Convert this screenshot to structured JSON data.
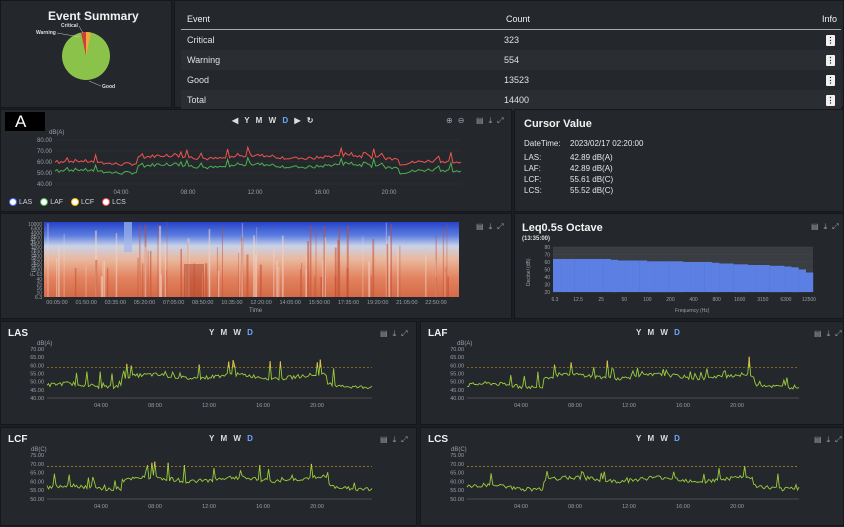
{
  "event_summary": {
    "title": "Event Summary",
    "pie_labels": {
      "critical": "Critical",
      "warning": "Warning",
      "good": "Good"
    },
    "table": {
      "headers": [
        "Event",
        "Count",
        "Info"
      ],
      "rows": [
        {
          "event": "Critical",
          "count": "323"
        },
        {
          "event": "Warning",
          "count": "554"
        },
        {
          "event": "Good",
          "count": "13523"
        },
        {
          "event": "Total",
          "count": "14400"
        }
      ],
      "info_glyph": "⋮"
    },
    "colors": {
      "critical": "#c0392b",
      "warning": "#e8a33a",
      "good": "#8bc34a"
    }
  },
  "top_chart": {
    "badge": "A",
    "range_buttons": [
      "Y",
      "M",
      "W",
      "D"
    ],
    "selected_range": "D",
    "yunit": "dB(A)",
    "yticks": [
      "80.00",
      "70.00",
      "60.00",
      "50.00",
      "40.00"
    ],
    "xticks": [
      "04:00",
      "08:00",
      "12:00",
      "16:00",
      "20:00"
    ],
    "legend": [
      "LAS",
      "LAF",
      "LCF",
      "LCS"
    ],
    "colors": {
      "LAS": "#4a6cf7",
      "LAF": "#4caf50",
      "LCF": "#ffb300",
      "LCS": "#ef5350"
    }
  },
  "cursor": {
    "title": "Cursor Value",
    "datetime_label": "DateTime:",
    "datetime": "2023/02/17 02:20:00",
    "rows": [
      {
        "label": "LAS:",
        "value": "42.89 dB(A)"
      },
      {
        "label": "LAF:",
        "value": "42.89 dB(A)"
      },
      {
        "label": "LCF:",
        "value": "55.61 dB(C)"
      },
      {
        "label": "LCS:",
        "value": "55.52 dB(C)"
      }
    ]
  },
  "spectrogram": {
    "ylabel": "Frequency (Hz)",
    "xlabel": "Time",
    "yticks": [
      "10000",
      "6300",
      "4000",
      "2500",
      "1600",
      "1000",
      "630",
      "400",
      "250",
      "160",
      "100",
      "63",
      "40",
      "25",
      "16",
      "10",
      "6.3"
    ],
    "xticks": [
      "00:05:00",
      "01:50:00",
      "03:35:00",
      "05:20:00",
      "07:05:00",
      "08:50:00",
      "10:35:00",
      "12:20:00",
      "14:05:00",
      "15:50:00",
      "17:35:00",
      "19:20:00",
      "21:05:00",
      "22:50:00"
    ]
  },
  "octave": {
    "title": "Leq0.5s Octave",
    "time": "(13:35:00)",
    "ylabel": "Decibel (dB)",
    "xlabel": "Frequency (Hz)",
    "yticks": [
      "80",
      "70",
      "60",
      "50",
      "40",
      "30",
      "20"
    ],
    "xticks": [
      "6.3",
      "12.5",
      "25",
      "50",
      "100",
      "200",
      "400",
      "800",
      "1600",
      "3150",
      "6300",
      "12500"
    ],
    "bar_color": "#5b7fe3",
    "chart_data": {
      "type": "bar",
      "categories": [
        "6.3",
        "8",
        "10",
        "12.5",
        "16",
        "20",
        "25",
        "31.5",
        "40",
        "50",
        "63",
        "80",
        "100",
        "125",
        "160",
        "200",
        "250",
        "315",
        "400",
        "500",
        "630",
        "800",
        "1000",
        "1250",
        "1600",
        "2000",
        "2500",
        "3150",
        "4000",
        "5000",
        "6300",
        "8000",
        "10000",
        "12500",
        "16000",
        "20000"
      ],
      "values": [
        64,
        64,
        64,
        64,
        64,
        64,
        64,
        64,
        63,
        62,
        62,
        62,
        62,
        61,
        61,
        61,
        61,
        61,
        60,
        60,
        60,
        60,
        59,
        58,
        58,
        57,
        57,
        56,
        56,
        56,
        55,
        55,
        54,
        53,
        50,
        46
      ],
      "ylim": [
        20,
        80
      ]
    }
  },
  "small_charts": [
    {
      "id": "las",
      "title": "LAS",
      "unit": "dB(A)",
      "yticks": [
        "70.00",
        "65.00",
        "60.00",
        "55.00",
        "50.00",
        "45.00",
        "40.00"
      ],
      "threshold": 60,
      "ylim": [
        40,
        72
      ]
    },
    {
      "id": "laf",
      "title": "LAF",
      "unit": "dB(A)",
      "yticks": [
        "70.00",
        "65.00",
        "60.00",
        "55.00",
        "50.00",
        "45.00",
        "40.00"
      ],
      "threshold": 60,
      "ylim": [
        40,
        72
      ]
    },
    {
      "id": "lcf",
      "title": "LCF",
      "unit": "dB(C)",
      "yticks": [
        "75.00",
        "70.00",
        "65.00",
        "60.00",
        "55.00",
        "50.00"
      ],
      "threshold": 70,
      "ylim": [
        50,
        77
      ]
    },
    {
      "id": "lcs",
      "title": "LCS",
      "unit": "dB(C)",
      "yticks": [
        "75.00",
        "70.00",
        "65.00",
        "60.00",
        "55.00",
        "50.00"
      ],
      "threshold": 70,
      "ylim": [
        50,
        77
      ]
    }
  ],
  "small_xticks": [
    "04:00",
    "08:00",
    "12:00",
    "16:00",
    "20:00"
  ],
  "small_range_buttons": [
    "Y",
    "M",
    "W",
    "D"
  ],
  "line_colors": {
    "green": "#9ccc3c",
    "orange": "#ffb74d",
    "threshold": "#d4a017"
  }
}
